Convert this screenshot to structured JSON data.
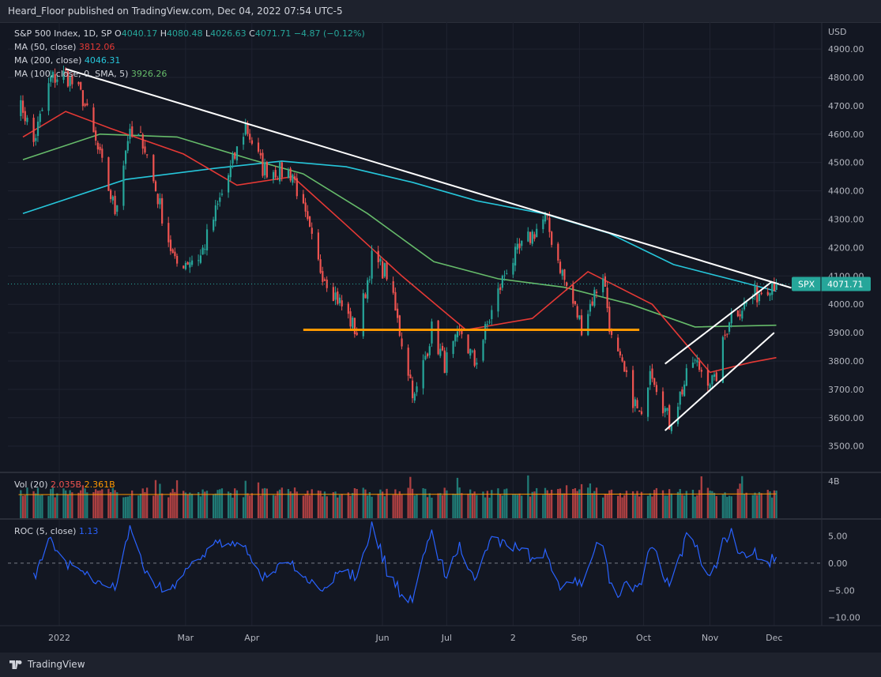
{
  "header": {
    "publisher": "Heard_Floor published on TradingView.com, Dec 04, 2022 07:54 UTC-5"
  },
  "legend": {
    "symbol": "S&P 500 Index, 1D, SP",
    "open_label": "O",
    "open": "4040.17",
    "high_label": "H",
    "high": "4080.48",
    "low_label": "L",
    "low": "4026.63",
    "close_label": "C",
    "close": "4071.71",
    "change": "−4.87 (−0.12%)",
    "ma50_label": "MA (50, close)",
    "ma50_value": "3812.06",
    "ma200_label": "MA (200, close)",
    "ma200_value": "4046.31",
    "ma100_label": "MA (100, close, 0, SMA, 5)",
    "ma100_value": "3926.26",
    "vol_label": "Vol (20)",
    "vol_value": "2.035B",
    "vol_ma_value": "2.361B",
    "roc_label": "ROC (5, close)",
    "roc_value": "1.13"
  },
  "price_tag": {
    "symbol": "SPX",
    "value": "4071.71"
  },
  "footer": {
    "brand": "TradingView"
  },
  "colors": {
    "background": "#131722",
    "up": "#26a69a",
    "down": "#ef5350",
    "ma50": "#e53935",
    "ma200": "#26c6da",
    "ma100": "#66bb6a",
    "roc": "#2962ff",
    "support": "#ff9800",
    "trendline": "#ffffff",
    "tag": "#26a69a"
  },
  "chart_data": [
    {
      "type": "candlestick",
      "title": "S&P 500 Index, 1D, SP",
      "currency_label": "USD",
      "y_ticks": [
        3500,
        3600,
        3700,
        3800,
        3900,
        4000,
        4100,
        4200,
        4300,
        4400,
        4500,
        4600,
        4700,
        4800,
        4900
      ],
      "ylim": [
        3410,
        4995
      ],
      "x_labels": [
        "2022",
        "Mar",
        "Apr",
        "Jun",
        "Jul",
        "2",
        "Sep",
        "Oct",
        "Nov",
        "Dec"
      ],
      "anchors": [
        [
          "2021-12-15",
          4690
        ],
        [
          "2021-12-20",
          4570
        ],
        [
          "2021-12-28",
          4795
        ],
        [
          "2022-01-04",
          4810
        ],
        [
          "2022-01-12",
          4725
        ],
        [
          "2022-01-27",
          4330
        ],
        [
          "2022-02-02",
          4590
        ],
        [
          "2022-02-09",
          4580
        ],
        [
          "2022-02-24",
          4140
        ],
        [
          "2022-03-08",
          4170
        ],
        [
          "2022-03-29",
          4630
        ],
        [
          "2022-04-06",
          4480
        ],
        [
          "2022-04-20",
          4460
        ],
        [
          "2022-05-02",
          4140
        ],
        [
          "2022-05-20",
          3900
        ],
        [
          "2022-05-27",
          4160
        ],
        [
          "2022-06-03",
          4110
        ],
        [
          "2022-06-16",
          3666
        ],
        [
          "2022-06-24",
          3910
        ],
        [
          "2022-06-30",
          3790
        ],
        [
          "2022-07-08",
          3900
        ],
        [
          "2022-07-14",
          3790
        ],
        [
          "2022-07-29",
          4130
        ],
        [
          "2022-08-16",
          4305
        ],
        [
          "2022-08-26",
          4060
        ],
        [
          "2022-09-02",
          3924
        ],
        [
          "2022-09-12",
          4110
        ],
        [
          "2022-09-16",
          3873
        ],
        [
          "2022-09-30",
          3585
        ],
        [
          "2022-10-04",
          3790
        ],
        [
          "2022-10-13",
          3580
        ],
        [
          "2022-10-24",
          3800
        ],
        [
          "2022-11-03",
          3720
        ],
        [
          "2022-11-10",
          3956
        ],
        [
          "2022-11-30",
          4080
        ],
        [
          "2022-12-02",
          4071.71
        ]
      ],
      "ma50": [
        [
          "2021-12-15",
          4590
        ],
        [
          "2022-01-04",
          4680
        ],
        [
          "2022-01-25",
          4620
        ],
        [
          "2022-02-28",
          4530
        ],
        [
          "2022-03-25",
          4420
        ],
        [
          "2022-04-20",
          4450
        ],
        [
          "2022-05-15",
          4280
        ],
        [
          "2022-06-10",
          4100
        ],
        [
          "2022-07-10",
          3910
        ],
        [
          "2022-08-10",
          3950
        ],
        [
          "2022-09-05",
          4115
        ],
        [
          "2022-10-05",
          4000
        ],
        [
          "2022-11-01",
          3760
        ],
        [
          "2022-11-20",
          3795
        ],
        [
          "2022-12-02",
          3812.06
        ]
      ],
      "ma100": [
        [
          "2021-12-15",
          4510
        ],
        [
          "2022-01-20",
          4600
        ],
        [
          "2022-02-25",
          4590
        ],
        [
          "2022-04-01",
          4510
        ],
        [
          "2022-04-25",
          4460
        ],
        [
          "2022-05-25",
          4320
        ],
        [
          "2022-06-25",
          4150
        ],
        [
          "2022-07-25",
          4090
        ],
        [
          "2022-08-25",
          4060
        ],
        [
          "2022-09-25",
          4000
        ],
        [
          "2022-10-25",
          3920
        ],
        [
          "2022-12-02",
          3926.26
        ]
      ],
      "ma200": [
        [
          "2021-12-15",
          4320
        ],
        [
          "2022-02-01",
          4440
        ],
        [
          "2022-03-15",
          4480
        ],
        [
          "2022-04-15",
          4505
        ],
        [
          "2022-05-15",
          4485
        ],
        [
          "2022-06-15",
          4430
        ],
        [
          "2022-07-15",
          4365
        ],
        [
          "2022-08-15",
          4320
        ],
        [
          "2022-09-15",
          4250
        ],
        [
          "2022-10-15",
          4140
        ],
        [
          "2022-11-15",
          4080
        ],
        [
          "2022-12-02",
          4046.31
        ]
      ],
      "trendline": [
        [
          "2022-01-04",
          4830
        ],
        [
          "2022-12-09",
          4058
        ]
      ],
      "support_line": {
        "value": 3910,
        "from": "2022-04-25",
        "to": "2022-09-29"
      },
      "channel": [
        {
          "from": [
            "2022-10-11",
            3790
          ],
          "to": [
            "2022-11-30",
            4080
          ]
        },
        {
          "from": [
            "2022-10-11",
            3555
          ],
          "to": [
            "2022-12-01",
            3900
          ]
        }
      ]
    },
    {
      "type": "bar",
      "title": "Vol (20)",
      "scale_label": "4B",
      "ylim": [
        0,
        4
      ],
      "baseline": 2.3,
      "last_value": 2.035,
      "ma_last_value": 2.361
    },
    {
      "type": "line",
      "title": "ROC (5, close)",
      "y_ticks": [
        5,
        0,
        -5,
        -10
      ],
      "y_tick_labels": [
        "5.00",
        "0.00",
        "−5.00",
        "−10.00"
      ],
      "ylim": [
        -11.5,
        7.4
      ],
      "last_value": 1.13
    }
  ]
}
